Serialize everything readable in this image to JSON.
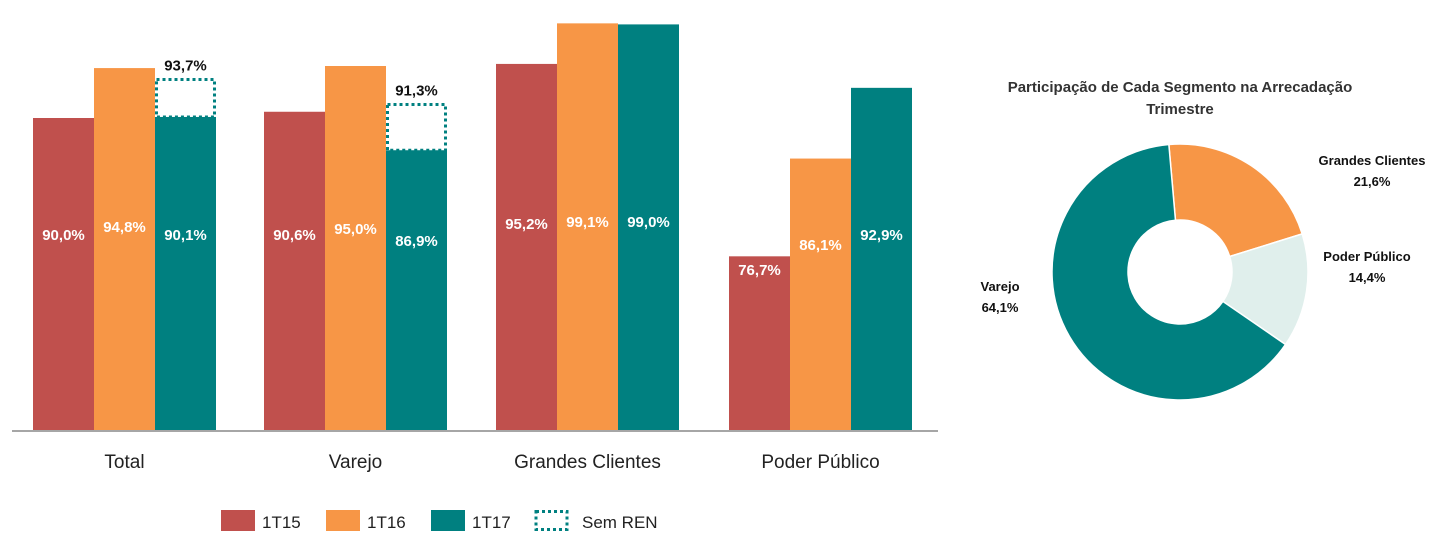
{
  "chart_data": [
    {
      "type": "bar",
      "categories": [
        "Total",
        "Varejo",
        "Grandes Clientes",
        "Poder Público"
      ],
      "series": [
        {
          "name": "1T15",
          "color": "#c0504d",
          "values": [
            90.0,
            90.6,
            95.2,
            76.7
          ],
          "labels": [
            "90,0%",
            "90,6%",
            "95,2%",
            "76,7%"
          ]
        },
        {
          "name": "1T16",
          "color": "#f79646",
          "values": [
            94.8,
            95.0,
            99.1,
            86.1
          ],
          "labels": [
            "94,8%",
            "95,0%",
            "99,1%",
            "86,1%"
          ]
        },
        {
          "name": "1T17",
          "color": "#008080",
          "values": [
            90.1,
            86.9,
            99.0,
            92.9
          ],
          "labels": [
            "90,1%",
            "86,9%",
            "99,0%",
            "92,9%"
          ]
        }
      ],
      "sem_ren": {
        "name": "Sem REN",
        "values": [
          93.7,
          91.3,
          null,
          null
        ],
        "labels": [
          "93,7%",
          "91,3%",
          null,
          null
        ]
      },
      "legend_position": "bottom",
      "grid": false
    },
    {
      "type": "pie",
      "title": "Participação de Cada Segmento na Arrecadação Trimestre",
      "title_lines": [
        "Participação de Cada Segmento na Arrecadação",
        "Trimestre"
      ],
      "donut": true,
      "slices": [
        {
          "label": "Grandes Clientes",
          "value": 21.6,
          "value_label": "21,6%",
          "color": "#f79646"
        },
        {
          "label": "Poder Público",
          "value": 14.4,
          "value_label": "14,4%",
          "color": "#e0efec"
        },
        {
          "label": "Varejo",
          "value": 64.1,
          "value_label": "64,1%",
          "color": "#008080"
        }
      ]
    }
  ]
}
